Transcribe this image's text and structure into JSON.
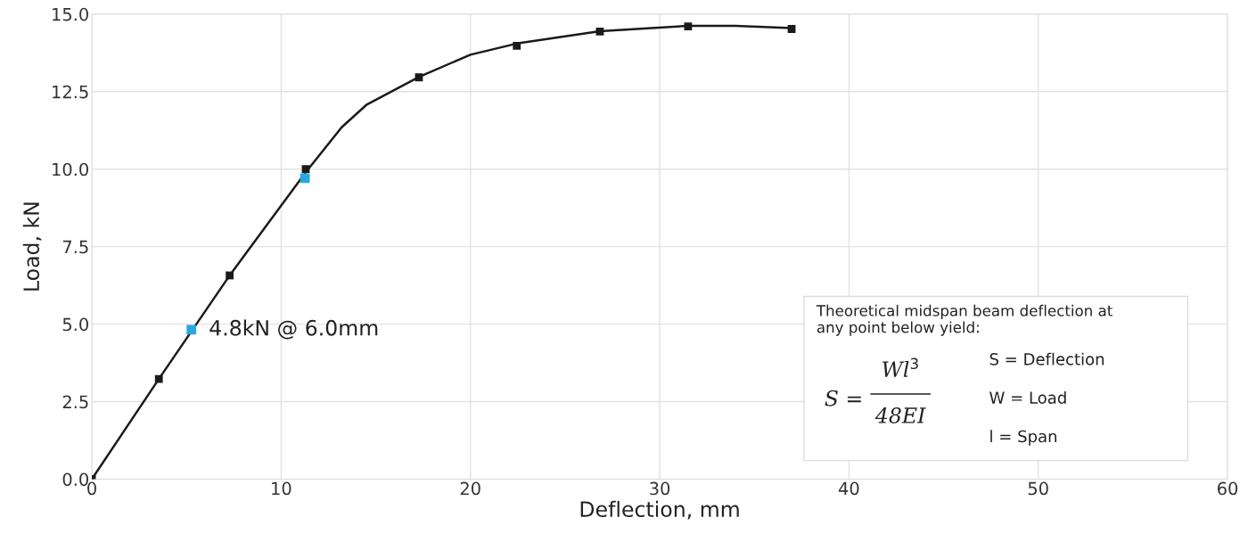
{
  "chart_data": {
    "type": "scatter",
    "xlabel": "Deflection, mm",
    "ylabel": "Load, kN",
    "xlim": [
      0,
      60
    ],
    "ylim": [
      0,
      15
    ],
    "xticks": [
      0,
      10,
      20,
      30,
      40,
      50,
      60
    ],
    "yticks": [
      {
        "value": 0,
        "label": "0.0"
      },
      2.5,
      {
        "value": 5,
        "label": "5.0"
      },
      7.5,
      {
        "value": 10,
        "label": "10.0"
      },
      12.5,
      {
        "value": 15,
        "label": "15.0"
      }
    ],
    "grid": true,
    "legend": false,
    "series": [
      {
        "type": "line",
        "color": "#1a1a1a",
        "marker": "none",
        "line_style": "solid",
        "x": [
          0,
          3.54,
          7.28,
          11.3,
          13.2,
          14.5,
          17.3,
          20,
          22.45,
          26.84,
          31.5,
          34,
          36.97
        ],
        "values": [
          0,
          3.23,
          6.57,
          9.9,
          11.35,
          12.07,
          12.98,
          13.69,
          14.05,
          14.45,
          14.62,
          14.62,
          14.55
        ]
      },
      {
        "color": "#1a1a1a",
        "marker": "square",
        "x": [
          0,
          3.54,
          7.28,
          11.3,
          17.28,
          22.45,
          26.84,
          31.5,
          36.97
        ],
        "values": [
          0,
          3.23,
          6.57,
          10.0,
          12.96,
          13.98,
          14.44,
          14.6,
          14.52
        ]
      },
      {
        "color": "#29a8e0",
        "marker": "square",
        "x": [
          5.26,
          11.26
        ],
        "values": [
          4.82,
          9.71
        ]
      }
    ],
    "annotations": [
      {
        "text": "4.8kN @ 6.0mm",
        "x": 5.26,
        "y": 4.82
      },
      "Theoretical midspan beam deflection at\nany point below yield:",
      "S =",
      "Wl$^{3}$",
      "48EI",
      "S = Deflection",
      "W = Load",
      "l = Span"
    ]
  }
}
